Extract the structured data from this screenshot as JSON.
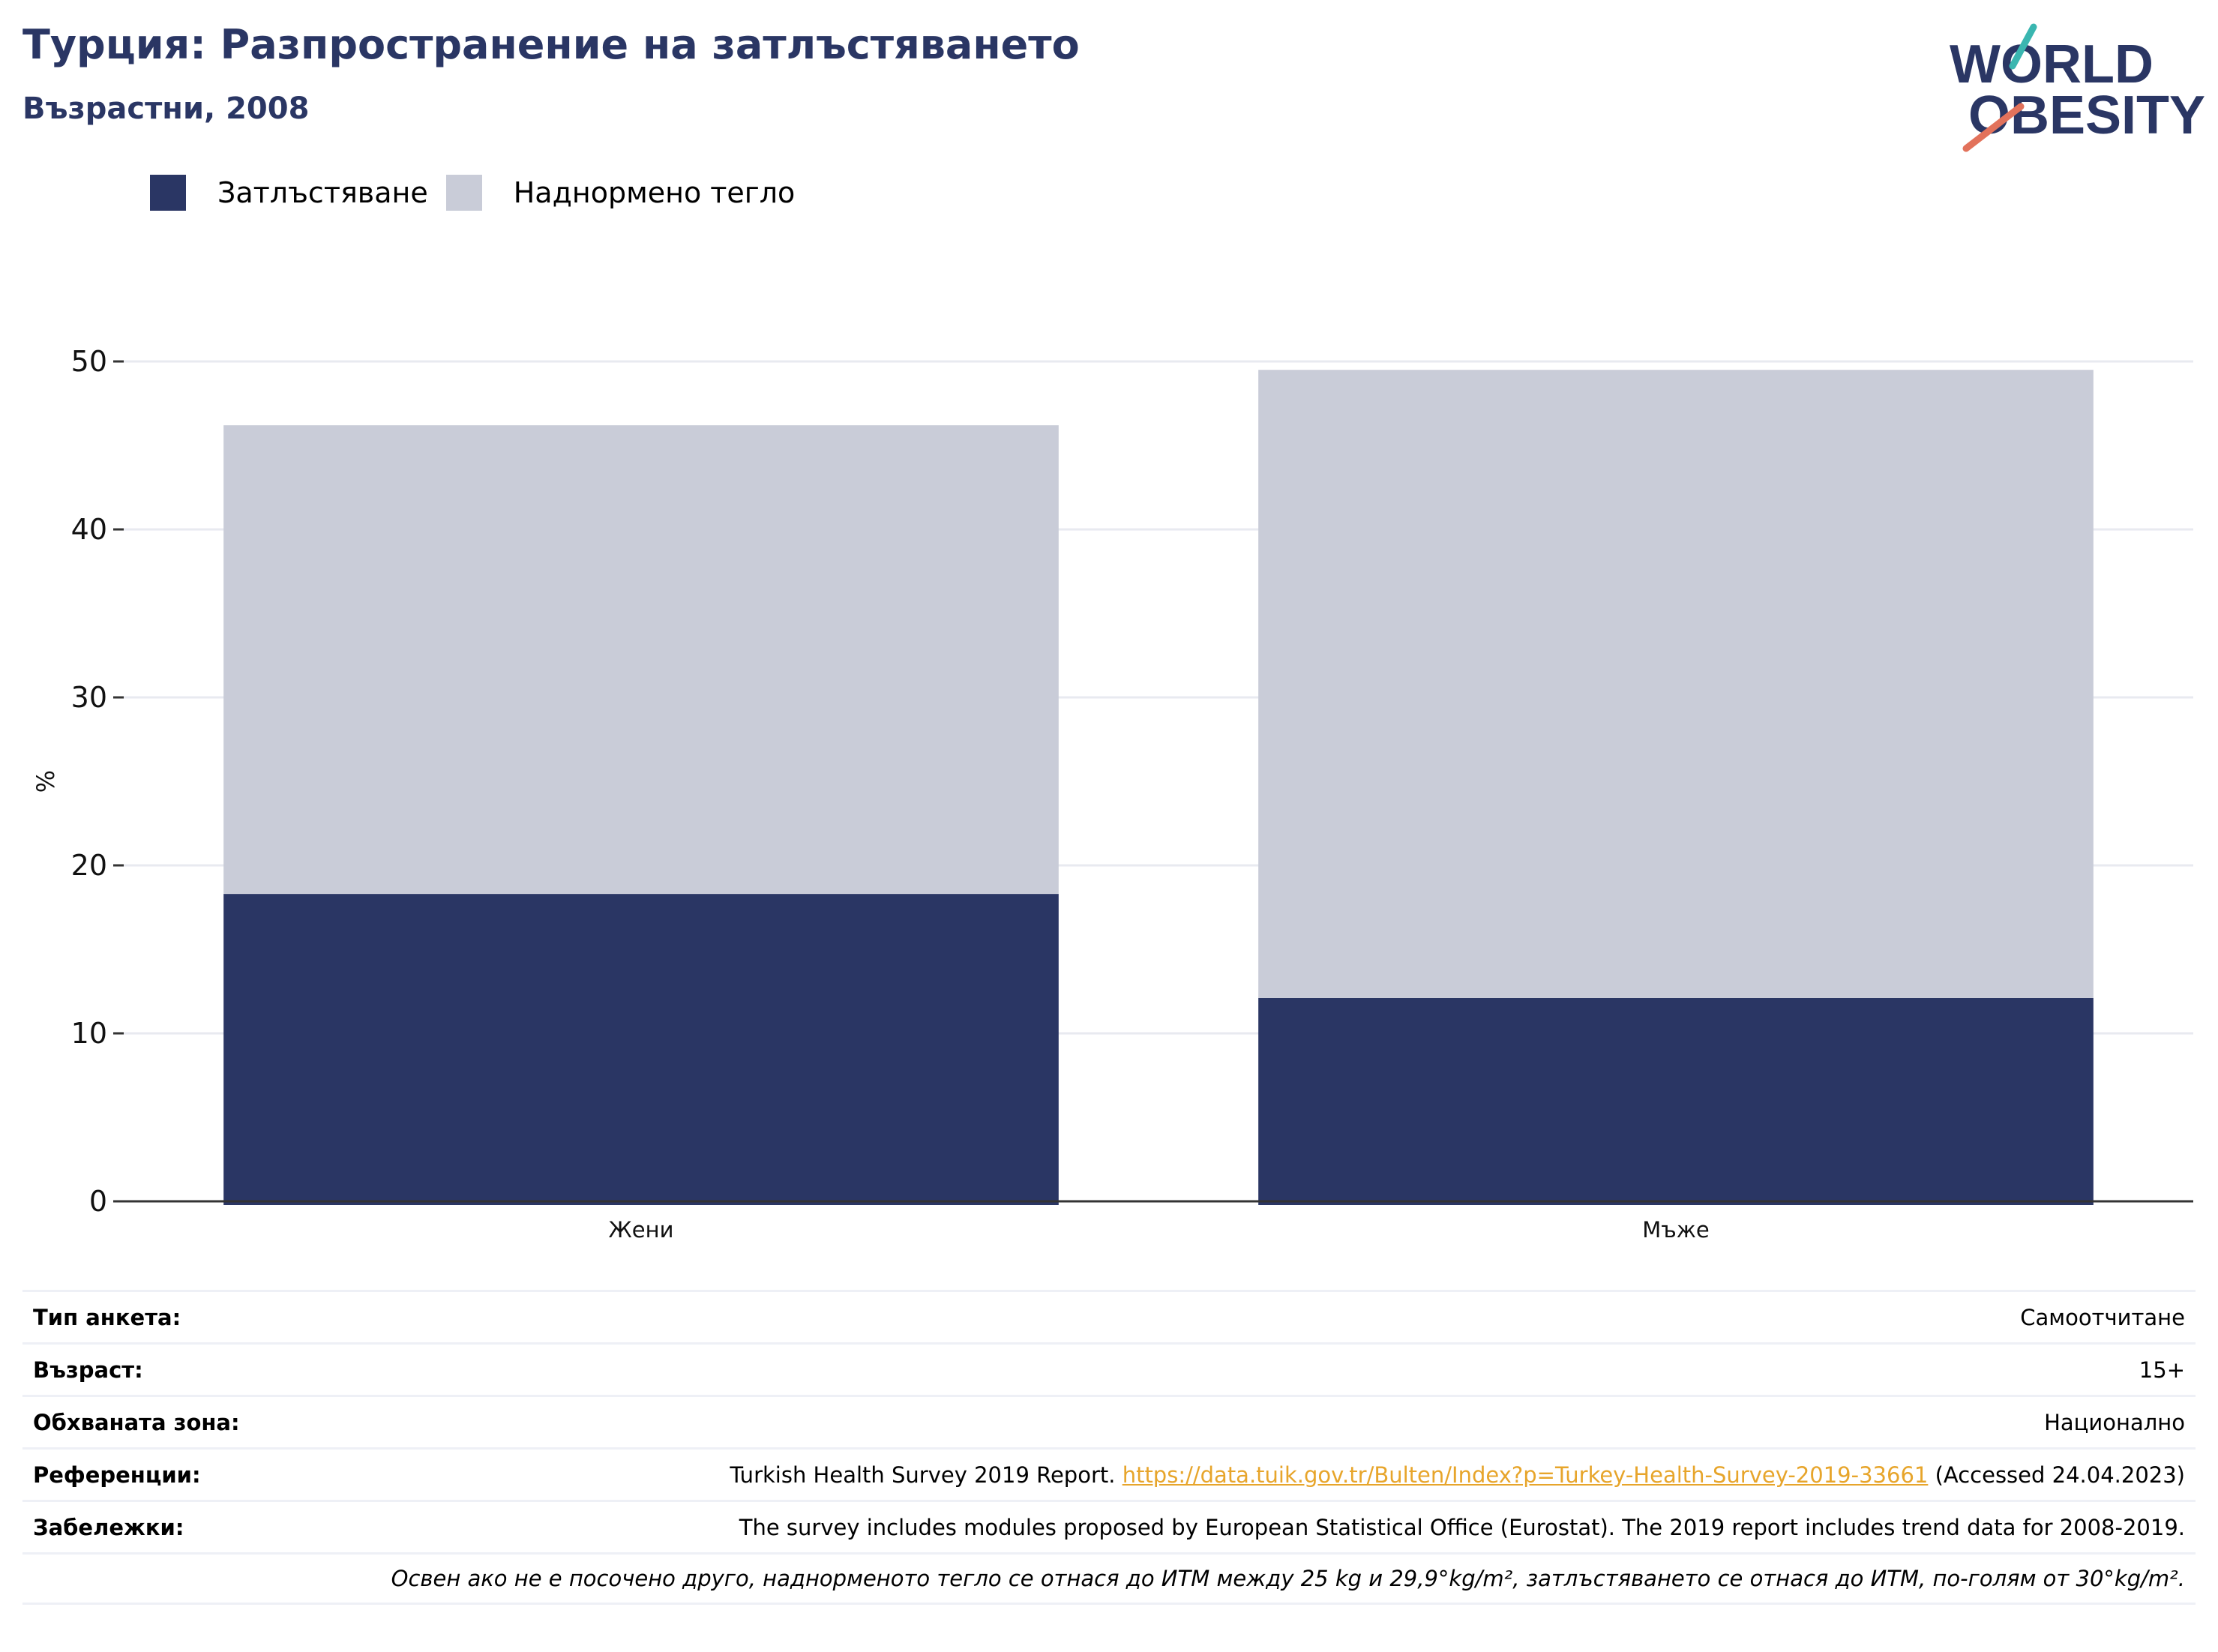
{
  "header": {
    "title": "Турция: Разпространение на затлъстяването",
    "subtitle": "Възрастни, 2008"
  },
  "logo": {
    "line1": "WORLD",
    "line2": "OBESITY"
  },
  "legend": [
    {
      "label": "Затлъстяване",
      "color": "#2a3664"
    },
    {
      "label": "Наднормено тегло",
      "color": "#c9ccd8"
    }
  ],
  "chart_data": {
    "type": "bar",
    "stacked": true,
    "categories": [
      "Жени",
      "Мъже"
    ],
    "series": [
      {
        "name": "Затлъстяване",
        "color": "#2a3664",
        "values": [
          18.3,
          12.1
        ]
      },
      {
        "name": "Наднормено тегло",
        "color": "#c9ccd8",
        "values": [
          27.9,
          37.4
        ]
      }
    ],
    "ylabel": "%",
    "ylim": [
      0,
      50
    ],
    "yticks": [
      0,
      10,
      20,
      30,
      40,
      50
    ],
    "grid": true,
    "legend_position": "top-left"
  },
  "info": {
    "survey_type": {
      "label": "Тип анкета:",
      "value": "Самоотчитане"
    },
    "age": {
      "label": "Възраст:",
      "value": "15+"
    },
    "area": {
      "label": "Обхваната зона:",
      "value": "Национално"
    },
    "references": {
      "label": "Референции:",
      "prefix": "Turkish Health Survey 2019 Report.",
      "link": "https://data.tuik.gov.tr/Bulten/Index?p=Turkey-Health-Survey-2019-33661",
      "suffix": "(Accessed 24.04.2023)"
    },
    "notes": {
      "label": "Забележки:",
      "value": "The survey includes modules proposed by European Statistical Office (Eurostat). The 2019 report includes trend data for 2008-2019."
    },
    "definition": "Освен ако не е посочено друго, наднорменото тегло се отнася до ИТМ между 25 kg и 29,9°kg/m², затлъстяването се отнася до ИТМ, по-голям от 30°kg/m²."
  }
}
